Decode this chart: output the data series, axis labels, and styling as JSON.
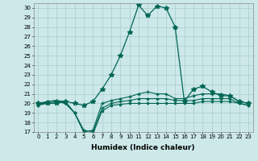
{
  "title": "",
  "xlabel": "Humidex (Indice chaleur)",
  "bg_color": "#cce8e8",
  "grid_color": "#aacccc",
  "line_color": "#006655",
  "xlim": [
    -0.5,
    23.5
  ],
  "ylim": [
    17,
    30.5
  ],
  "xticks": [
    0,
    1,
    2,
    3,
    4,
    5,
    6,
    7,
    8,
    9,
    10,
    11,
    12,
    13,
    14,
    15,
    16,
    17,
    18,
    19,
    20,
    21,
    22,
    23
  ],
  "yticks": [
    17,
    18,
    19,
    20,
    21,
    22,
    23,
    24,
    25,
    26,
    27,
    28,
    29,
    30
  ],
  "series": [
    {
      "y": [
        20,
        20,
        20,
        20.2,
        20.0,
        19.8,
        20.2,
        21.5,
        23.0,
        25.0,
        27.5,
        30.3,
        29.2,
        30.2,
        30.0,
        28.0,
        20.2,
        21.5,
        21.8,
        21.2,
        20.8,
        20.8,
        20.2,
        20.0
      ],
      "marker": "*",
      "ms": 4,
      "lw": 0.9
    },
    {
      "y": [
        19.8,
        20.0,
        20.2,
        20.0,
        19.0,
        17.0,
        16.8,
        19.2,
        19.8,
        19.9,
        20.0,
        20.0,
        20.0,
        20.0,
        20.0,
        20.0,
        20.0,
        20.0,
        20.2,
        20.2,
        20.2,
        20.2,
        20.0,
        19.8
      ],
      "marker": ".",
      "ms": 3,
      "lw": 0.8
    },
    {
      "y": [
        19.8,
        20.2,
        20.3,
        20.2,
        19.0,
        17.2,
        17.0,
        19.5,
        20.0,
        20.2,
        20.3,
        20.5,
        20.5,
        20.5,
        20.5,
        20.3,
        20.3,
        20.3,
        20.5,
        20.5,
        20.5,
        20.5,
        20.0,
        19.8
      ],
      "marker": "+",
      "ms": 3,
      "lw": 0.8
    },
    {
      "y": [
        20,
        20.2,
        20.3,
        20.0,
        19.0,
        17.0,
        17.2,
        20.0,
        20.3,
        20.5,
        20.7,
        21.0,
        21.2,
        21.0,
        21.0,
        20.5,
        20.5,
        20.8,
        21.0,
        21.0,
        21.0,
        20.8,
        20.2,
        20.0
      ],
      "marker": "+",
      "ms": 3,
      "lw": 0.8
    }
  ]
}
